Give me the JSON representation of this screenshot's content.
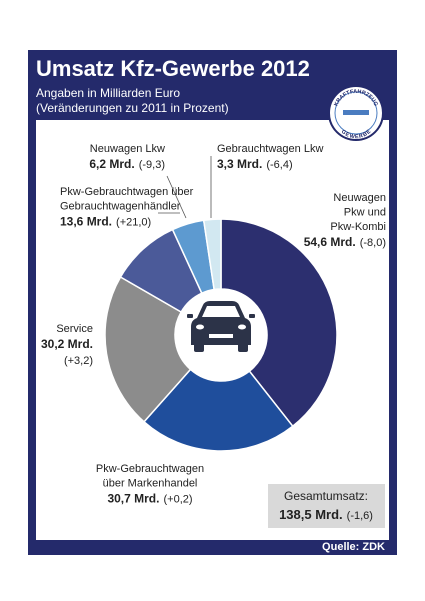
{
  "chart_data": {
    "type": "donut",
    "title": "Umsatz Kfz-Gewerbe 2012",
    "subtitle": [
      "Angaben in Milliarden Euro",
      "(Veränderungen zu 2011 in Prozent)"
    ],
    "categories": [
      [
        "Neuwagen",
        "Pkw und",
        "Pkw-Kombi"
      ],
      [
        "Pkw-Gebrauchtwagen",
        "über Markenhandel"
      ],
      [
        "Service"
      ],
      [
        "Pkw-Gebrauchtwagen über",
        "Gebrauchtwagenhändler"
      ],
      [
        "Neuwagen Lkw"
      ],
      [
        "Gebrauchtwagen Lkw"
      ]
    ],
    "values": [
      54.6,
      30.7,
      30.2,
      13.6,
      6.2,
      3.3
    ],
    "value_labels": [
      "54,6 Mrd.",
      "30,7 Mrd.",
      "30,2 Mrd.",
      "13,6 Mrd.",
      "6,2 Mrd.",
      "3,3 Mrd."
    ],
    "change_labels": [
      "(-8,0)",
      "(+0,2)",
      "(+3,2)",
      "(+21,0)",
      "(-9,3)",
      "(-6,4)"
    ],
    "colors": [
      "#2c2f6f",
      "#1f4e9c",
      "#8c8c8c",
      "#4b5a99",
      "#5d9ad0",
      "#d2e8f1"
    ],
    "total": {
      "label": "Gesamtumsatz:",
      "value": 138.5,
      "value_label": "138,5 Mrd.",
      "change_label": "(-1,6)"
    },
    "logo": {
      "top": "KRAFTFAHRZEUG",
      "bottom": "GEWERBE"
    },
    "source": "Quelle: ZDK"
  }
}
